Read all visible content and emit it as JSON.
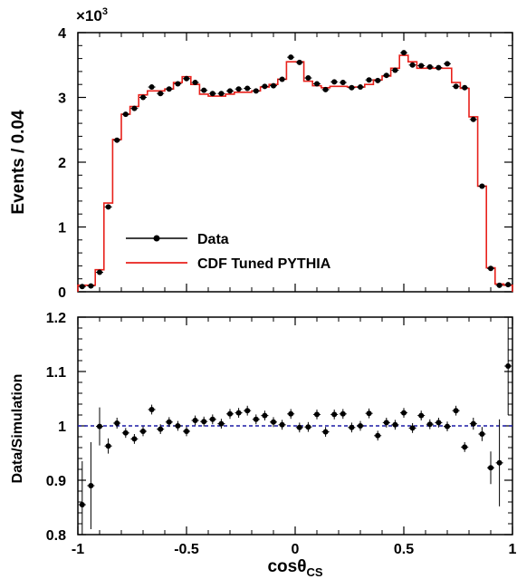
{
  "chart_data": [
    {
      "type": "line",
      "panel": "top",
      "ylabel": "Events / 0.04",
      "y_multiplier_label": "×10",
      "y_multiplier_exp": "3",
      "xlim": [
        -1,
        1
      ],
      "ylim": [
        0,
        4
      ],
      "yticks": [
        0,
        1,
        2,
        3,
        4
      ],
      "ytick_labels": [
        "0",
        "1",
        "2",
        "3",
        "4"
      ],
      "bin_edges": [
        -1.0,
        -0.96,
        -0.92,
        -0.88,
        -0.84,
        -0.8,
        -0.76,
        -0.72,
        -0.68,
        -0.64,
        -0.6,
        -0.56,
        -0.52,
        -0.48,
        -0.44,
        -0.4,
        -0.36,
        -0.32,
        -0.28,
        -0.24,
        -0.2,
        -0.16,
        -0.12,
        -0.08,
        -0.04,
        0.0,
        0.04,
        0.08,
        0.12,
        0.16,
        0.2,
        0.24,
        0.28,
        0.32,
        0.36,
        0.4,
        0.44,
        0.48,
        0.52,
        0.56,
        0.6,
        0.64,
        0.68,
        0.72,
        0.76,
        0.8,
        0.84,
        0.88,
        0.92,
        0.96,
        1.0
      ],
      "x": [
        -0.98,
        -0.94,
        -0.9,
        -0.86,
        -0.82,
        -0.78,
        -0.74,
        -0.7,
        -0.66,
        -0.62,
        -0.58,
        -0.54,
        -0.5,
        -0.46,
        -0.42,
        -0.38,
        -0.34,
        -0.3,
        -0.26,
        -0.22,
        -0.18,
        -0.14,
        -0.1,
        -0.06,
        -0.02,
        0.02,
        0.06,
        0.1,
        0.14,
        0.18,
        0.22,
        0.26,
        0.3,
        0.34,
        0.38,
        0.42,
        0.46,
        0.5,
        0.54,
        0.58,
        0.62,
        0.66,
        0.7,
        0.74,
        0.78,
        0.82,
        0.86,
        0.9,
        0.94,
        0.98
      ],
      "series": [
        {
          "name": "Data",
          "style": "points",
          "color": "#000000",
          "values": [
            0.08,
            0.09,
            0.3,
            1.31,
            2.34,
            2.74,
            2.83,
            3.0,
            3.16,
            3.06,
            3.13,
            3.21,
            3.29,
            3.23,
            3.11,
            3.06,
            3.06,
            3.1,
            3.13,
            3.14,
            3.1,
            3.17,
            3.18,
            3.28,
            3.62,
            3.54,
            3.3,
            3.21,
            3.12,
            3.24,
            3.23,
            3.15,
            3.16,
            3.27,
            3.26,
            3.34,
            3.42,
            3.69,
            3.5,
            3.49,
            3.47,
            3.46,
            3.52,
            3.17,
            3.15,
            2.66,
            1.63,
            0.36,
            0.1,
            0.11
          ]
        },
        {
          "name": "CDF Tuned PYTHIA",
          "style": "step",
          "color": "#e8211b",
          "values": [
            0.1,
            0.1,
            0.34,
            1.37,
            2.35,
            2.74,
            2.86,
            3.04,
            3.1,
            3.1,
            3.13,
            3.23,
            3.32,
            3.2,
            3.05,
            3.02,
            3.02,
            3.05,
            3.08,
            3.08,
            3.1,
            3.16,
            3.2,
            3.28,
            3.55,
            3.55,
            3.25,
            3.18,
            3.15,
            3.17,
            3.17,
            3.16,
            3.16,
            3.2,
            3.27,
            3.33,
            3.45,
            3.65,
            3.55,
            3.45,
            3.45,
            3.45,
            3.45,
            3.23,
            3.14,
            2.7,
            1.63,
            0.37,
            0.12,
            0.1
          ]
        }
      ],
      "legend_position": "bottom-left"
    },
    {
      "type": "scatter",
      "panel": "bottom",
      "xlabel": "cosθ",
      "xlabel_sub": "CS",
      "ylabel": "Data/Simulation",
      "xlim": [
        -1,
        1
      ],
      "ylim": [
        0.8,
        1.2
      ],
      "xticks": [
        -1,
        -0.5,
        0,
        0.5,
        1
      ],
      "xtick_labels": [
        "-1",
        "-0.5",
        "0",
        "0.5",
        "1"
      ],
      "yticks": [
        0.8,
        0.9,
        1.0,
        1.1,
        1.2
      ],
      "ytick_labels": [
        "0.8",
        "0.9",
        "1",
        "1.1",
        "1.2"
      ],
      "reference_line": {
        "y": 1.0,
        "style": "dashed",
        "color": "#1a1aa6"
      },
      "x": [
        -0.98,
        -0.94,
        -0.9,
        -0.86,
        -0.82,
        -0.78,
        -0.74,
        -0.7,
        -0.66,
        -0.62,
        -0.58,
        -0.54,
        -0.5,
        -0.46,
        -0.42,
        -0.38,
        -0.34,
        -0.3,
        -0.26,
        -0.22,
        -0.18,
        -0.14,
        -0.1,
        -0.06,
        -0.02,
        0.02,
        0.06,
        0.1,
        0.14,
        0.18,
        0.22,
        0.26,
        0.3,
        0.34,
        0.38,
        0.42,
        0.46,
        0.5,
        0.54,
        0.58,
        0.62,
        0.66,
        0.7,
        0.74,
        0.78,
        0.82,
        0.86,
        0.9,
        0.94,
        0.98
      ],
      "values": [
        0.855,
        0.89,
        0.999,
        0.963,
        1.005,
        0.987,
        0.976,
        0.99,
        1.03,
        0.994,
        1.007,
        1.0,
        0.99,
        1.01,
        1.008,
        1.012,
        1.004,
        1.022,
        1.024,
        1.028,
        1.012,
        1.019,
        1.007,
        1.002,
        1.022,
        0.997,
        0.998,
        1.021,
        0.989,
        1.021,
        1.022,
        0.997,
        1.0,
        1.023,
        0.982,
        1.006,
        1.002,
        1.024,
        0.996,
        1.019,
        1.003,
        1.006,
        0.999,
        1.028,
        0.961,
        1.004,
        0.985,
        0.923,
        0.932,
        1.11
      ],
      "errors": [
        0.08,
        0.08,
        0.035,
        0.014,
        0.01,
        0.009,
        0.009,
        0.009,
        0.009,
        0.009,
        0.009,
        0.009,
        0.009,
        0.009,
        0.009,
        0.009,
        0.009,
        0.009,
        0.009,
        0.009,
        0.009,
        0.009,
        0.009,
        0.009,
        0.009,
        0.009,
        0.009,
        0.009,
        0.009,
        0.009,
        0.009,
        0.009,
        0.009,
        0.009,
        0.009,
        0.009,
        0.009,
        0.009,
        0.009,
        0.009,
        0.009,
        0.009,
        0.009,
        0.009,
        0.009,
        0.011,
        0.013,
        0.03,
        0.08,
        0.09
      ]
    }
  ]
}
